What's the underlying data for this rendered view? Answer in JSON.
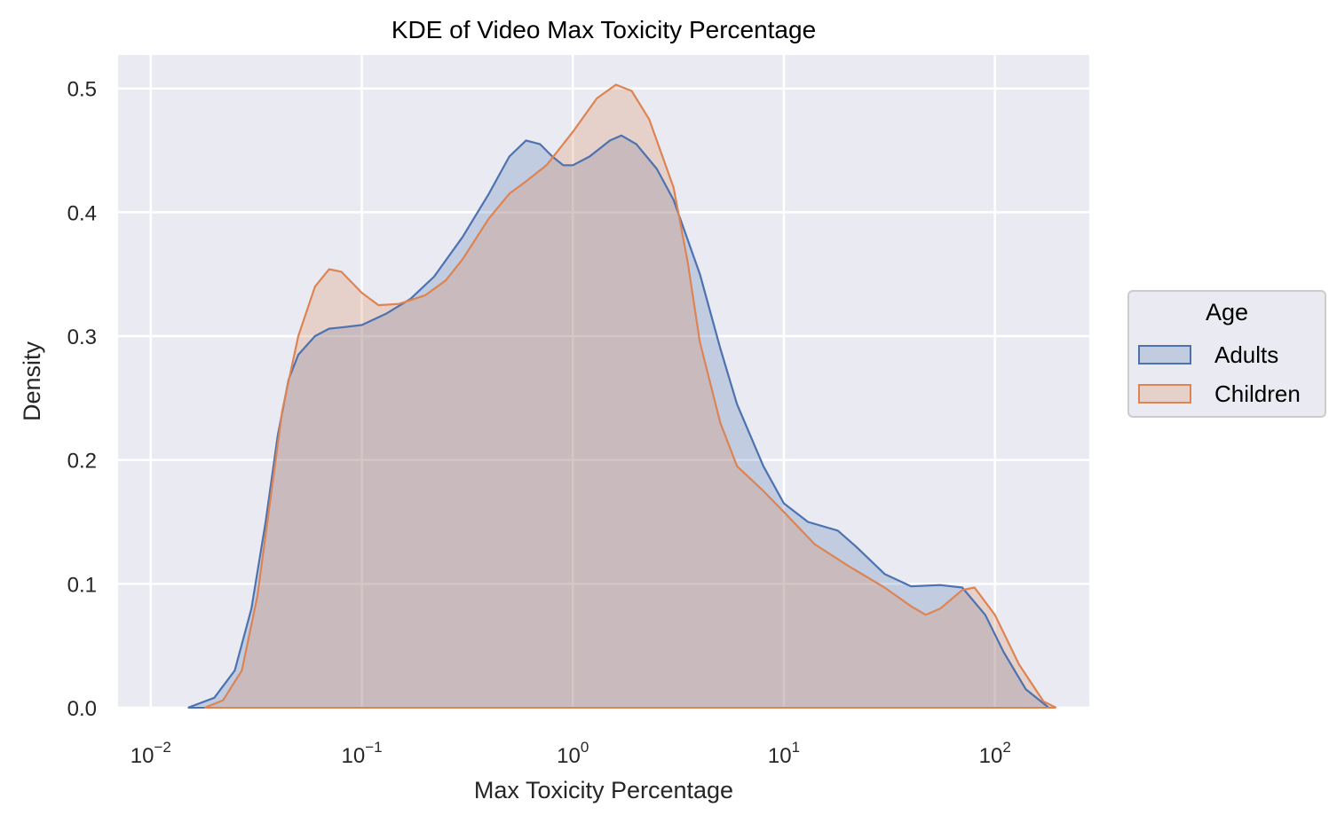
{
  "chart_data": {
    "type": "area",
    "title": "KDE of Video Max Toxicity Percentage",
    "xlabel": "Max Toxicity Percentage",
    "ylabel": "Density",
    "xscale": "log",
    "xlim": [
      0.007,
      280
    ],
    "ylim": [
      0,
      0.527
    ],
    "x_ticks": [
      {
        "base": "10",
        "exp": "−2"
      },
      {
        "base": "10",
        "exp": "−1"
      },
      {
        "base": "10",
        "exp": "0"
      },
      {
        "base": "10",
        "exp": "1"
      },
      {
        "base": "10",
        "exp": "2"
      }
    ],
    "y_ticks": [
      "0.0",
      "0.1",
      "0.2",
      "0.3",
      "0.4",
      "0.5"
    ],
    "y_tick_values": [
      0,
      0.1,
      0.2,
      0.3,
      0.4,
      0.5
    ],
    "grid": true,
    "legend_title": "Age",
    "legend_position": "right",
    "series": [
      {
        "name": "Adults",
        "color": "#4c72b0",
        "points": [
          [
            0.015,
            0
          ],
          [
            0.02,
            0.008
          ],
          [
            0.025,
            0.03
          ],
          [
            0.03,
            0.08
          ],
          [
            0.035,
            0.15
          ],
          [
            0.04,
            0.22
          ],
          [
            0.045,
            0.265
          ],
          [
            0.05,
            0.285
          ],
          [
            0.06,
            0.3
          ],
          [
            0.07,
            0.306
          ],
          [
            0.08,
            0.307
          ],
          [
            0.1,
            0.309
          ],
          [
            0.13,
            0.318
          ],
          [
            0.17,
            0.33
          ],
          [
            0.22,
            0.348
          ],
          [
            0.3,
            0.38
          ],
          [
            0.4,
            0.415
          ],
          [
            0.5,
            0.445
          ],
          [
            0.6,
            0.458
          ],
          [
            0.7,
            0.455
          ],
          [
            0.8,
            0.445
          ],
          [
            0.9,
            0.438
          ],
          [
            1.0,
            0.438
          ],
          [
            1.2,
            0.445
          ],
          [
            1.5,
            0.458
          ],
          [
            1.7,
            0.462
          ],
          [
            2.0,
            0.455
          ],
          [
            2.5,
            0.435
          ],
          [
            3.0,
            0.41
          ],
          [
            4.0,
            0.35
          ],
          [
            5.0,
            0.29
          ],
          [
            6.0,
            0.245
          ],
          [
            8.0,
            0.195
          ],
          [
            10,
            0.165
          ],
          [
            13,
            0.15
          ],
          [
            18,
            0.143
          ],
          [
            22,
            0.13
          ],
          [
            30,
            0.108
          ],
          [
            40,
            0.098
          ],
          [
            55,
            0.099
          ],
          [
            70,
            0.097
          ],
          [
            90,
            0.075
          ],
          [
            110,
            0.045
          ],
          [
            140,
            0.015
          ],
          [
            180,
            0
          ]
        ]
      },
      {
        "name": "Children",
        "color": "#dd8452",
        "points": [
          [
            0.018,
            0
          ],
          [
            0.022,
            0.006
          ],
          [
            0.027,
            0.03
          ],
          [
            0.032,
            0.09
          ],
          [
            0.037,
            0.17
          ],
          [
            0.042,
            0.24
          ],
          [
            0.05,
            0.3
          ],
          [
            0.06,
            0.34
          ],
          [
            0.07,
            0.354
          ],
          [
            0.08,
            0.352
          ],
          [
            0.1,
            0.335
          ],
          [
            0.12,
            0.325
          ],
          [
            0.15,
            0.326
          ],
          [
            0.2,
            0.333
          ],
          [
            0.25,
            0.345
          ],
          [
            0.3,
            0.362
          ],
          [
            0.4,
            0.395
          ],
          [
            0.5,
            0.415
          ],
          [
            0.6,
            0.425
          ],
          [
            0.75,
            0.438
          ],
          [
            1.0,
            0.465
          ],
          [
            1.3,
            0.492
          ],
          [
            1.6,
            0.503
          ],
          [
            1.9,
            0.498
          ],
          [
            2.3,
            0.475
          ],
          [
            3.0,
            0.42
          ],
          [
            3.5,
            0.36
          ],
          [
            4.0,
            0.295
          ],
          [
            5.0,
            0.23
          ],
          [
            6.0,
            0.195
          ],
          [
            8.0,
            0.175
          ],
          [
            10,
            0.158
          ],
          [
            14,
            0.132
          ],
          [
            20,
            0.115
          ],
          [
            30,
            0.097
          ],
          [
            40,
            0.082
          ],
          [
            47,
            0.075
          ],
          [
            55,
            0.08
          ],
          [
            70,
            0.095
          ],
          [
            80,
            0.097
          ],
          [
            100,
            0.075
          ],
          [
            130,
            0.035
          ],
          [
            170,
            0.005
          ],
          [
            195,
            0
          ]
        ]
      }
    ]
  }
}
